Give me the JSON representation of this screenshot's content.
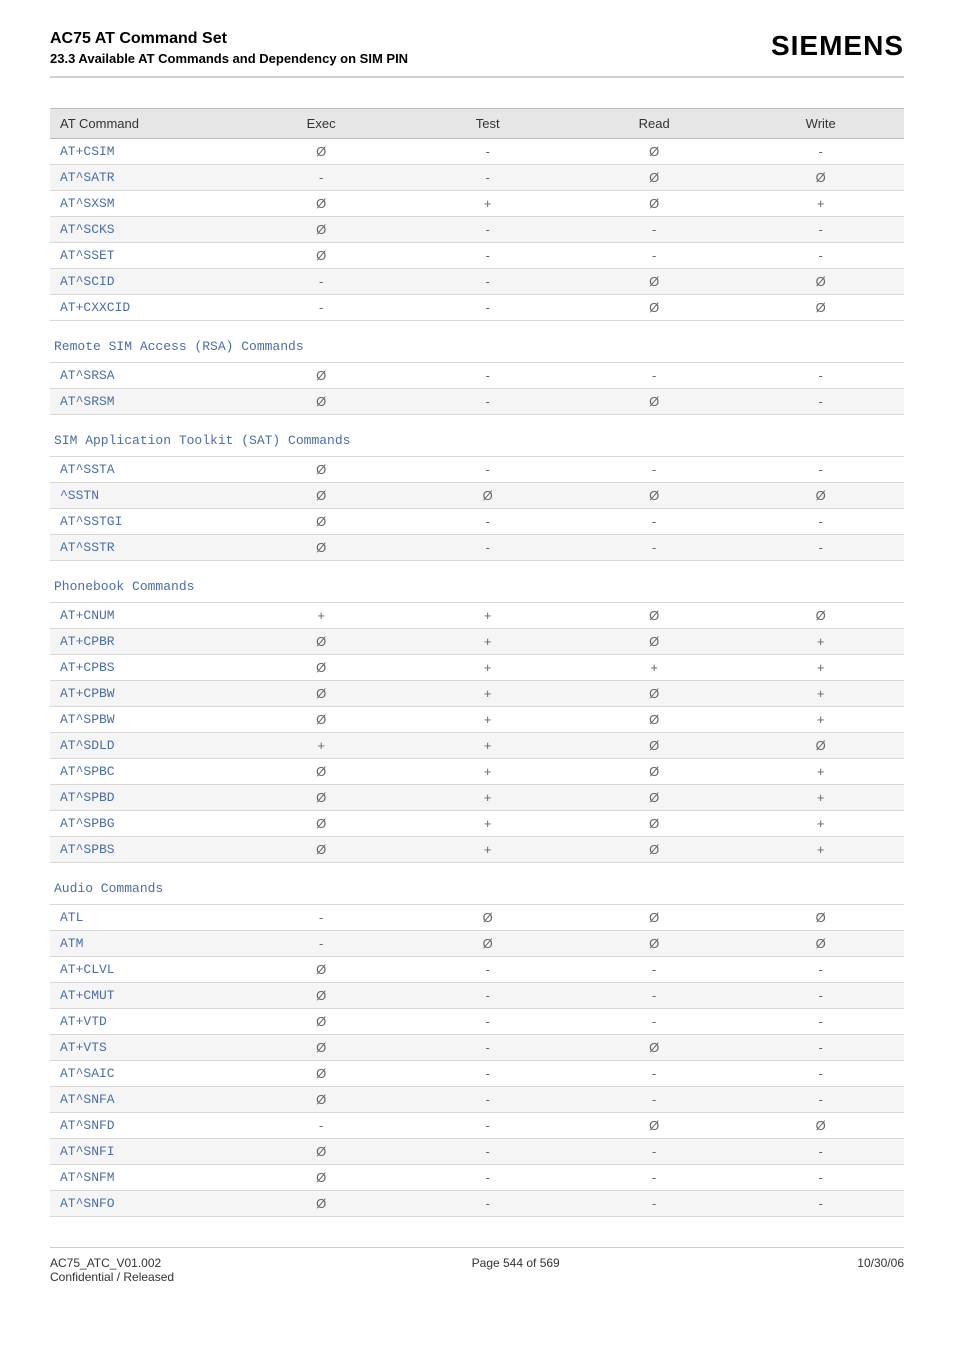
{
  "header": {
    "title": "AC75 AT Command Set",
    "subtitle": "23.3 Available AT Commands and Dependency on SIM PIN",
    "brand": "SIEMENS"
  },
  "symbols": {
    "empty": "Ø",
    "dash": "-",
    "plus": "+"
  },
  "columns": [
    "AT Command",
    "Exec",
    "Test",
    "Read",
    "Write"
  ],
  "groups": [
    {
      "title": null,
      "rows": [
        {
          "cmd": "AT+CSIM",
          "exec": "Ø",
          "test": "-",
          "read": "Ø",
          "write": "-"
        },
        {
          "cmd": "AT^SATR",
          "exec": "-",
          "test": "-",
          "read": "Ø",
          "write": "Ø"
        },
        {
          "cmd": "AT^SXSM",
          "exec": "Ø",
          "test": "+",
          "read": "Ø",
          "write": "+"
        },
        {
          "cmd": "AT^SCKS",
          "exec": "Ø",
          "test": "-",
          "read": "-",
          "write": "-"
        },
        {
          "cmd": "AT^SSET",
          "exec": "Ø",
          "test": "-",
          "read": "-",
          "write": "-"
        },
        {
          "cmd": "AT^SCID",
          "exec": "-",
          "test": "-",
          "read": "Ø",
          "write": "Ø"
        },
        {
          "cmd": "AT+CXXCID",
          "exec": "-",
          "test": "-",
          "read": "Ø",
          "write": "Ø"
        }
      ]
    },
    {
      "title": "Remote SIM Access (RSA) Commands",
      "rows": [
        {
          "cmd": "AT^SRSA",
          "exec": "Ø",
          "test": "-",
          "read": "-",
          "write": "-"
        },
        {
          "cmd": "AT^SRSM",
          "exec": "Ø",
          "test": "-",
          "read": "Ø",
          "write": "-"
        }
      ]
    },
    {
      "title": "SIM Application Toolkit (SAT) Commands",
      "rows": [
        {
          "cmd": "AT^SSTA",
          "exec": "Ø",
          "test": "-",
          "read": "-",
          "write": "-"
        },
        {
          "cmd": "^SSTN",
          "exec": "Ø",
          "test": "Ø",
          "read": "Ø",
          "write": "Ø"
        },
        {
          "cmd": "AT^SSTGI",
          "exec": "Ø",
          "test": "-",
          "read": "-",
          "write": "-"
        },
        {
          "cmd": "AT^SSTR",
          "exec": "Ø",
          "test": "-",
          "read": "-",
          "write": "-"
        }
      ]
    },
    {
      "title": "Phonebook Commands",
      "rows": [
        {
          "cmd": "AT+CNUM",
          "exec": "+",
          "test": "+",
          "read": "Ø",
          "write": "Ø"
        },
        {
          "cmd": "AT+CPBR",
          "exec": "Ø",
          "test": "+",
          "read": "Ø",
          "write": "+"
        },
        {
          "cmd": "AT+CPBS",
          "exec": "Ø",
          "test": "+",
          "read": "+",
          "write": "+"
        },
        {
          "cmd": "AT+CPBW",
          "exec": "Ø",
          "test": "+",
          "read": "Ø",
          "write": "+"
        },
        {
          "cmd": "AT^SPBW",
          "exec": "Ø",
          "test": "+",
          "read": "Ø",
          "write": "+"
        },
        {
          "cmd": "AT^SDLD",
          "exec": "+",
          "test": "+",
          "read": "Ø",
          "write": "Ø"
        },
        {
          "cmd": "AT^SPBC",
          "exec": "Ø",
          "test": "+",
          "read": "Ø",
          "write": "+"
        },
        {
          "cmd": "AT^SPBD",
          "exec": "Ø",
          "test": "+",
          "read": "Ø",
          "write": "+"
        },
        {
          "cmd": "AT^SPBG",
          "exec": "Ø",
          "test": "+",
          "read": "Ø",
          "write": "+"
        },
        {
          "cmd": "AT^SPBS",
          "exec": "Ø",
          "test": "+",
          "read": "Ø",
          "write": "+"
        }
      ]
    },
    {
      "title": "Audio Commands",
      "rows": [
        {
          "cmd": "ATL",
          "exec": "-",
          "test": "Ø",
          "read": "Ø",
          "write": "Ø"
        },
        {
          "cmd": "ATM",
          "exec": "-",
          "test": "Ø",
          "read": "Ø",
          "write": "Ø"
        },
        {
          "cmd": "AT+CLVL",
          "exec": "Ø",
          "test": "-",
          "read": "-",
          "write": "-"
        },
        {
          "cmd": "AT+CMUT",
          "exec": "Ø",
          "test": "-",
          "read": "-",
          "write": "-"
        },
        {
          "cmd": "AT+VTD",
          "exec": "Ø",
          "test": "-",
          "read": "-",
          "write": "-"
        },
        {
          "cmd": "AT+VTS",
          "exec": "Ø",
          "test": "-",
          "read": "Ø",
          "write": "-"
        },
        {
          "cmd": "AT^SAIC",
          "exec": "Ø",
          "test": "-",
          "read": "-",
          "write": "-"
        },
        {
          "cmd": "AT^SNFA",
          "exec": "Ø",
          "test": "-",
          "read": "-",
          "write": "-"
        },
        {
          "cmd": "AT^SNFD",
          "exec": "-",
          "test": "-",
          "read": "Ø",
          "write": "Ø"
        },
        {
          "cmd": "AT^SNFI",
          "exec": "Ø",
          "test": "-",
          "read": "-",
          "write": "-"
        },
        {
          "cmd": "AT^SNFM",
          "exec": "Ø",
          "test": "-",
          "read": "-",
          "write": "-"
        },
        {
          "cmd": "AT^SNFO",
          "exec": "Ø",
          "test": "-",
          "read": "-",
          "write": "-"
        }
      ]
    }
  ],
  "footer": {
    "left_line1": "AC75_ATC_V01.002",
    "left_line2": "Confidential / Released",
    "center": "Page 544 of 569",
    "right": "10/30/06"
  }
}
